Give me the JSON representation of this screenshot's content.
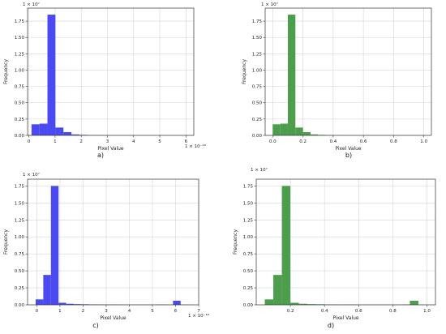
{
  "chart_data": [
    {
      "panel": "a",
      "type": "bar",
      "caption": "a)",
      "color": "#4a4af0",
      "xlabel": "Pixel Value",
      "ylabel": "Frequency",
      "yscale_text": "1 × 10⁷",
      "xscale_text": "1 × 10⁻¹⁶",
      "xlim": [
        -0.05,
        6.3
      ],
      "ylim": [
        0,
        1.95
      ],
      "xticks": [
        0,
        1,
        2,
        3,
        4,
        5,
        6
      ],
      "xtick_labels": [
        "0",
        "1",
        "2",
        "3",
        "4",
        "5",
        "6"
      ],
      "yticks": [
        0,
        0.25,
        0.5,
        0.75,
        1.0,
        1.25,
        1.5,
        1.75
      ],
      "ytick_labels": [
        "0.00",
        "0.25",
        "0.50",
        "0.75",
        "1.00",
        "1.25",
        "1.50",
        "1.75"
      ],
      "grid": true,
      "bin_edges": [
        0.1,
        0.405,
        0.71,
        1.015,
        1.32,
        1.625,
        1.93,
        2.235,
        2.54,
        2.845,
        3.15,
        3.455,
        3.76,
        4.065,
        4.37,
        4.675,
        4.98,
        5.285,
        5.59,
        5.895,
        6.2
      ],
      "counts": [
        0.17,
        0.18,
        1.85,
        0.12,
        0.05,
        0.015,
        0.008,
        0.004,
        0.002,
        0.002,
        0.001,
        0.001,
        0.001,
        0.001,
        0.001,
        0.001,
        0.001,
        0.001,
        0.001,
        0.001
      ]
    },
    {
      "panel": "b",
      "type": "bar",
      "caption": "b)",
      "color": "#4c9e4c",
      "xlabel": "Pixel Value",
      "ylabel": "Frequency",
      "yscale_text": "1 × 10⁷",
      "xscale_text": "",
      "xlim": [
        -0.05,
        1.05
      ],
      "ylim": [
        0,
        1.95
      ],
      "xticks": [
        0.0,
        0.2,
        0.4,
        0.6,
        0.8,
        1.0
      ],
      "xtick_labels": [
        "0.0",
        "0.2",
        "0.4",
        "0.6",
        "0.8",
        "1.0"
      ],
      "yticks": [
        0,
        0.25,
        0.5,
        0.75,
        1.0,
        1.25,
        1.5,
        1.75
      ],
      "ytick_labels": [
        "0.00",
        "0.25",
        "0.50",
        "0.75",
        "1.00",
        "1.25",
        "1.50",
        "1.75"
      ],
      "grid": true,
      "bin_edges": [
        0.0,
        0.05,
        0.1,
        0.15,
        0.2,
        0.25,
        0.3,
        0.35,
        0.4,
        0.45,
        0.5,
        0.55,
        0.6,
        0.65,
        0.7,
        0.75,
        0.8,
        0.85,
        0.9,
        0.95,
        1.0
      ],
      "counts": [
        0.17,
        0.18,
        1.85,
        0.12,
        0.05,
        0.015,
        0.008,
        0.004,
        0.002,
        0.002,
        0.001,
        0.001,
        0.001,
        0.001,
        0.001,
        0.001,
        0.001,
        0.001,
        0.001,
        0.001
      ]
    },
    {
      "panel": "c",
      "type": "bar",
      "caption": "c)",
      "color": "#4a4af0",
      "xlabel": "Pixel Value",
      "ylabel": "Frequency",
      "yscale_text": "1 × 10⁷",
      "xscale_text": "1 × 10⁻¹⁶",
      "xlim": [
        -0.4,
        7.0
      ],
      "ylim": [
        0,
        1.85
      ],
      "xticks": [
        0,
        1,
        2,
        3,
        4,
        5,
        6,
        7
      ],
      "xtick_labels": [
        "0",
        "1",
        "2",
        "3",
        "4",
        "5",
        "6",
        "7"
      ],
      "yticks": [
        0,
        0.25,
        0.5,
        0.75,
        1.0,
        1.25,
        1.5,
        1.75
      ],
      "ytick_labels": [
        "0.00",
        "0.25",
        "0.50",
        "0.75",
        "1.00",
        "1.25",
        "1.50",
        "1.75"
      ],
      "grid": true,
      "bin_edges": [
        -0.05,
        0.28,
        0.61,
        0.94,
        1.27,
        1.6,
        1.93,
        2.26,
        2.59,
        2.92,
        3.25,
        3.58,
        3.91,
        4.24,
        4.57,
        4.9,
        5.23,
        5.56,
        5.89,
        6.22,
        6.55
      ],
      "counts": [
        0.08,
        0.44,
        1.75,
        0.03,
        0.015,
        0.01,
        0.008,
        0.006,
        0.004,
        0.003,
        0.003,
        0.002,
        0.002,
        0.002,
        0.002,
        0.002,
        0.004,
        0.002,
        0.06,
        0.002
      ]
    },
    {
      "panel": "d",
      "type": "bar",
      "caption": "d)",
      "color": "#4c9e4c",
      "xlabel": "Pixel Value",
      "ylabel": "Frequency",
      "yscale_text": "1 × 10⁷",
      "xscale_text": "",
      "xlim": [
        0.0,
        1.05
      ],
      "ylim": [
        0,
        1.85
      ],
      "xticks": [
        0.2,
        0.4,
        0.6,
        0.8,
        1.0
      ],
      "xtick_labels": [
        "0.2",
        "0.4",
        "0.6",
        "0.8",
        "1.0"
      ],
      "yticks": [
        0,
        0.25,
        0.5,
        0.75,
        1.0,
        1.25,
        1.5,
        1.75
      ],
      "ytick_labels": [
        "0.00",
        "0.25",
        "0.50",
        "0.75",
        "1.00",
        "1.25",
        "1.50",
        "1.75"
      ],
      "grid": true,
      "bin_edges": [
        0.05,
        0.1,
        0.15,
        0.2,
        0.25,
        0.3,
        0.35,
        0.4,
        0.45,
        0.5,
        0.55,
        0.6,
        0.65,
        0.7,
        0.75,
        0.8,
        0.85,
        0.9,
        0.95,
        1.0
      ],
      "counts": [
        0.08,
        0.44,
        1.75,
        0.03,
        0.015,
        0.01,
        0.008,
        0.006,
        0.004,
        0.003,
        0.003,
        0.002,
        0.002,
        0.002,
        0.002,
        0.002,
        0.004,
        0.06,
        0.002
      ]
    }
  ]
}
